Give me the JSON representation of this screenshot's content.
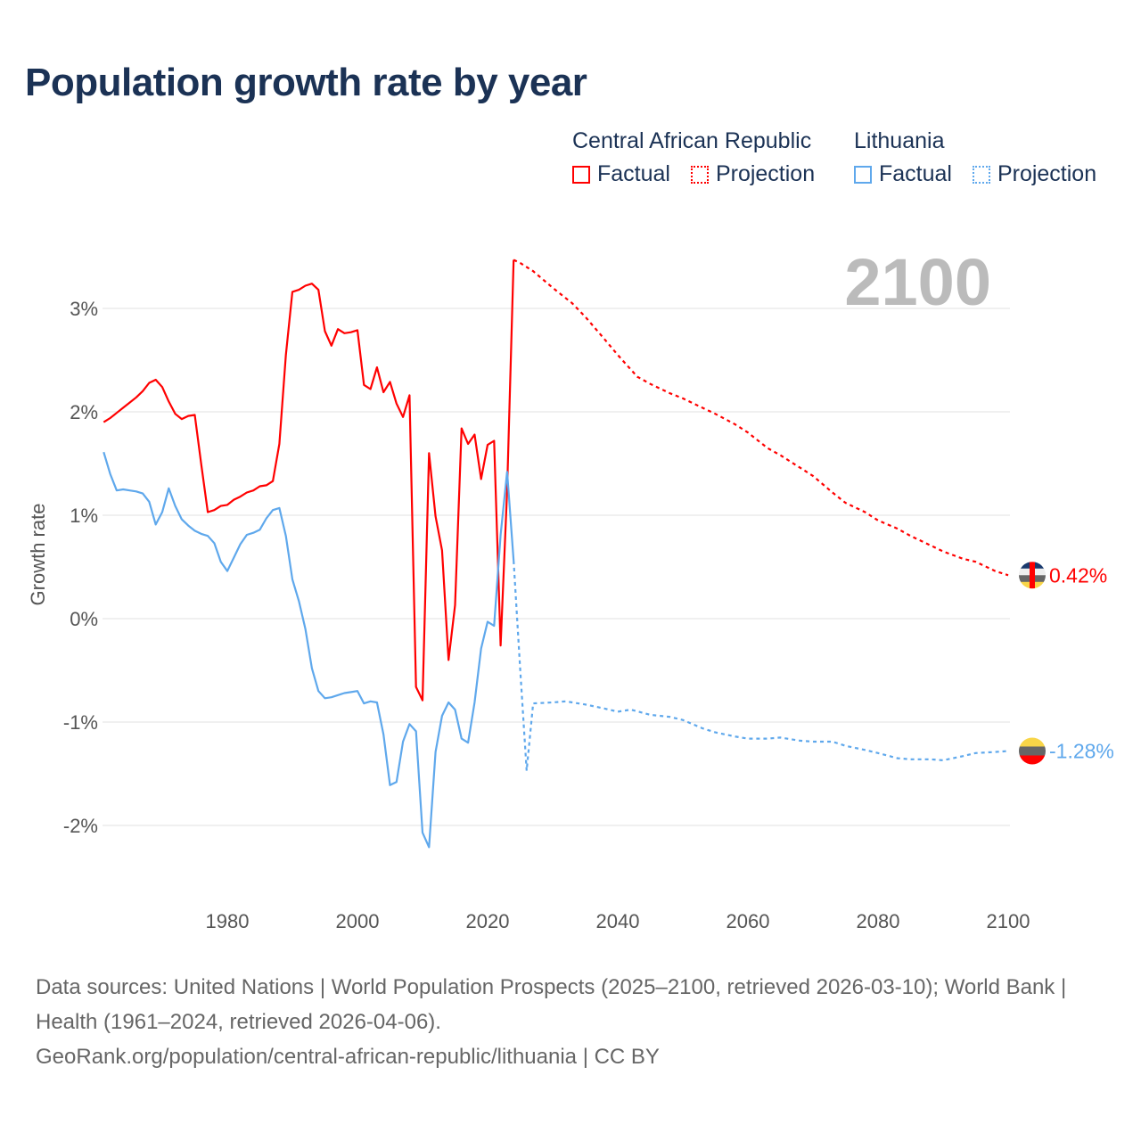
{
  "title": "Population growth rate by year",
  "legend": {
    "groups": [
      {
        "name": "Central African Republic",
        "color": "#ff0000",
        "factual": "Factual",
        "projection": "Projection"
      },
      {
        "name": "Lithuania",
        "color": "#5fa8ec",
        "factual": "Factual",
        "projection": "Projection"
      }
    ]
  },
  "footer": {
    "sources": "Data sources: United Nations | World Population Prospects (2025–2100, retrieved 2026-03-10); World Bank | Health (1961–2024, retrieved 2026-04-06).",
    "link": "GeoRank.org/population/central-african-republic/lithuania | CC BY"
  },
  "chart_data": {
    "type": "line",
    "title": "Population growth rate by year",
    "ylabel": "Growth rate",
    "xlabel": "",
    "year_watermark": "2100",
    "xlim": [
      1961,
      2100
    ],
    "ylim": [
      -2.5,
      3.8
    ],
    "x_ticks": [
      1980,
      2000,
      2020,
      2040,
      2060,
      2080,
      2100
    ],
    "y_ticks": [
      {
        "v": 3,
        "label": "3%"
      },
      {
        "v": 2,
        "label": "2%"
      },
      {
        "v": 1,
        "label": "1%"
      },
      {
        "v": 0,
        "label": "0%"
      },
      {
        "v": -1,
        "label": "-1%"
      },
      {
        "v": -2,
        "label": "-2%"
      }
    ],
    "grid": true,
    "series": [
      {
        "name": "Central African Republic",
        "color": "#ff0000",
        "end_label": "0.42%",
        "factual": {
          "start_year": 1961,
          "values": [
            1.9,
            1.94,
            1.99,
            2.04,
            2.09,
            2.14,
            2.2,
            2.28,
            2.31,
            2.24,
            2.1,
            1.98,
            1.93,
            1.96,
            1.97,
            1.49,
            1.03,
            1.05,
            1.09,
            1.1,
            1.15,
            1.18,
            1.22,
            1.24,
            1.28,
            1.29,
            1.33,
            1.69,
            2.55,
            3.16,
            3.18,
            3.22,
            3.24,
            3.18,
            2.78,
            2.64,
            2.8,
            2.76,
            2.77,
            2.79,
            2.26,
            2.22,
            2.43,
            2.19,
            2.29,
            2.08,
            1.95,
            2.16,
            -0.66,
            -0.79,
            1.6,
            0.99,
            0.66,
            -0.4,
            0.13,
            1.84,
            1.69,
            1.78,
            1.35,
            1.68,
            1.72,
            -0.26,
            1.24,
            3.47
          ]
        },
        "projection": {
          "points": [
            [
              2024,
              3.47
            ],
            [
              2025,
              3.44
            ],
            [
              2027,
              3.36
            ],
            [
              2030,
              3.2
            ],
            [
              2033,
              3.05
            ],
            [
              2035,
              2.92
            ],
            [
              2038,
              2.7
            ],
            [
              2040,
              2.55
            ],
            [
              2043,
              2.34
            ],
            [
              2045,
              2.27
            ],
            [
              2048,
              2.18
            ],
            [
              2050,
              2.13
            ],
            [
              2053,
              2.04
            ],
            [
              2055,
              1.98
            ],
            [
              2058,
              1.88
            ],
            [
              2060,
              1.8
            ],
            [
              2063,
              1.65
            ],
            [
              2065,
              1.58
            ],
            [
              2068,
              1.46
            ],
            [
              2070,
              1.38
            ],
            [
              2073,
              1.22
            ],
            [
              2075,
              1.12
            ],
            [
              2078,
              1.03
            ],
            [
              2080,
              0.95
            ],
            [
              2083,
              0.87
            ],
            [
              2085,
              0.8
            ],
            [
              2088,
              0.71
            ],
            [
              2090,
              0.65
            ],
            [
              2093,
              0.58
            ],
            [
              2095,
              0.55
            ],
            [
              2098,
              0.46
            ],
            [
              2100,
              0.42
            ]
          ]
        }
      },
      {
        "name": "Lithuania",
        "color": "#5fa8ec",
        "end_label": "-1.28%",
        "factual": {
          "start_year": 1961,
          "values": [
            1.61,
            1.4,
            1.24,
            1.25,
            1.24,
            1.23,
            1.21,
            1.13,
            0.91,
            1.03,
            1.26,
            1.09,
            0.96,
            0.9,
            0.85,
            0.82,
            0.8,
            0.73,
            0.55,
            0.46,
            0.59,
            0.72,
            0.81,
            0.83,
            0.86,
            0.97,
            1.05,
            1.07,
            0.8,
            0.38,
            0.17,
            -0.1,
            -0.48,
            -0.7,
            -0.77,
            -0.76,
            -0.74,
            -0.72,
            -0.71,
            -0.7,
            -0.82,
            -0.8,
            -0.81,
            -1.12,
            -1.61,
            -1.58,
            -1.19,
            -1.02,
            -1.09,
            -2.07,
            -2.21,
            -1.29,
            -0.94,
            -0.81,
            -0.88,
            -1.16,
            -1.2,
            -0.81,
            -0.29,
            -0.03,
            -0.07,
            0.81,
            1.42,
            0.56
          ]
        },
        "projection": {
          "points": [
            [
              2024,
              0.56
            ],
            [
              2025,
              -0.48
            ],
            [
              2026,
              -1.47
            ],
            [
              2027,
              -0.82
            ],
            [
              2030,
              -0.81
            ],
            [
              2032,
              -0.8
            ],
            [
              2035,
              -0.83
            ],
            [
              2038,
              -0.87
            ],
            [
              2040,
              -0.9
            ],
            [
              2042,
              -0.88
            ],
            [
              2045,
              -0.93
            ],
            [
              2048,
              -0.95
            ],
            [
              2050,
              -0.98
            ],
            [
              2053,
              -1.06
            ],
            [
              2055,
              -1.1
            ],
            [
              2058,
              -1.14
            ],
            [
              2060,
              -1.16
            ],
            [
              2063,
              -1.16
            ],
            [
              2065,
              -1.15
            ],
            [
              2068,
              -1.18
            ],
            [
              2070,
              -1.19
            ],
            [
              2073,
              -1.19
            ],
            [
              2075,
              -1.23
            ],
            [
              2078,
              -1.27
            ],
            [
              2080,
              -1.3
            ],
            [
              2083,
              -1.35
            ],
            [
              2085,
              -1.36
            ],
            [
              2088,
              -1.36
            ],
            [
              2090,
              -1.37
            ],
            [
              2093,
              -1.33
            ],
            [
              2095,
              -1.3
            ],
            [
              2098,
              -1.29
            ],
            [
              2100,
              -1.28
            ]
          ]
        }
      }
    ]
  }
}
